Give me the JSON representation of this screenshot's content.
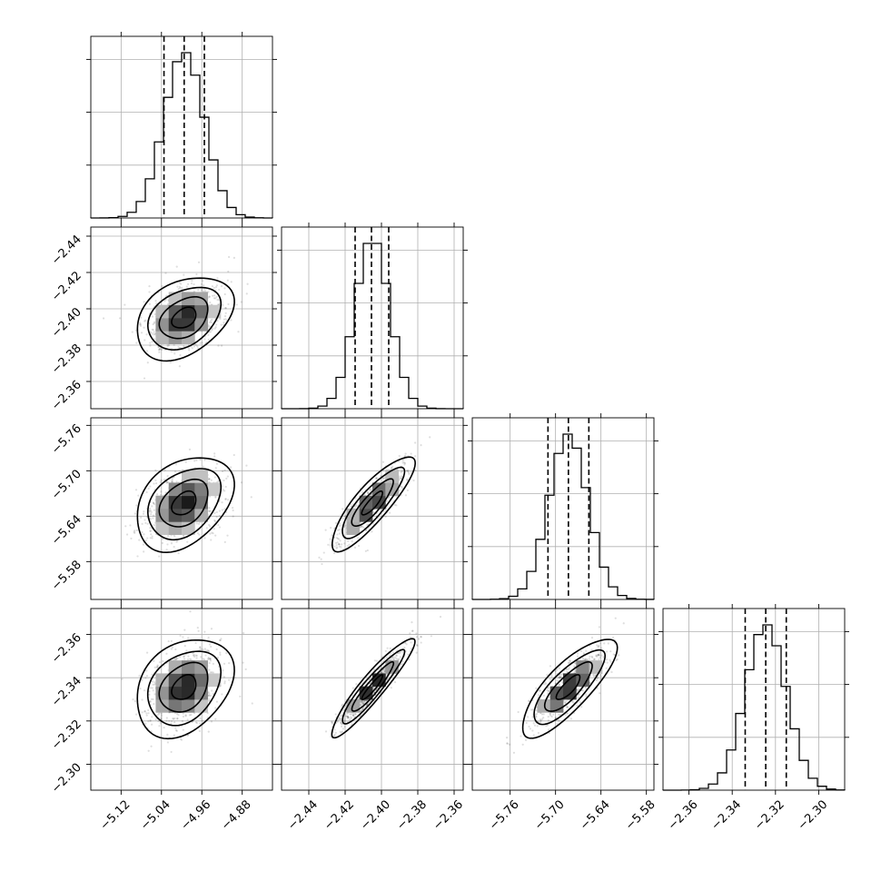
{
  "chart_data": {
    "type": "corner",
    "parameters": [
      {
        "mean": -4.995,
        "sd": 0.04,
        "range": [
          -5.18,
          -4.82
        ],
        "ticks": [
          "−5.12",
          "−5.04",
          "−4.96",
          "−4.88"
        ],
        "tick_values": [
          -5.12,
          -5.04,
          -4.96,
          -4.88
        ],
        "quantiles": [
          -5.035,
          -4.995,
          -4.955
        ]
      },
      {
        "mean": -2.405,
        "sd": 0.0095,
        "range": [
          -2.455,
          -2.355
        ],
        "ticks": [
          "−2.44",
          "−2.42",
          "−2.40",
          "−2.38",
          "−2.36"
        ],
        "tick_values": [
          -2.44,
          -2.42,
          -2.4,
          -2.38,
          -2.36
        ],
        "quantiles": [
          -2.4145,
          -2.4055,
          -2.396
        ]
      },
      {
        "mean": -5.683,
        "sd": 0.026,
        "range": [
          -5.81,
          -5.57
        ],
        "ticks": [
          "−5.76",
          "−5.70",
          "−5.64",
          "−5.58"
        ],
        "tick_values": [
          -5.76,
          -5.7,
          -5.64,
          -5.58
        ],
        "quantiles": [
          -5.71,
          -5.683,
          -5.656
        ]
      },
      {
        "mean": -2.3245,
        "sd": 0.0095,
        "range": [
          -2.372,
          -2.288
        ],
        "ticks": [
          "−2.36",
          "−2.34",
          "−2.32",
          "−2.30"
        ],
        "tick_values": [
          -2.36,
          -2.34,
          -2.32,
          -2.3
        ],
        "quantiles": [
          -2.334,
          -2.3245,
          -2.315
        ]
      }
    ],
    "row_ticks": {
      "1": [
        "−2.36",
        "−2.38",
        "−2.40",
        "−2.42",
        "−2.44"
      ],
      "2": [
        "−5.58",
        "−5.64",
        "−5.70",
        "−5.76"
      ],
      "3": [
        "−2.30",
        "−2.32",
        "−2.34",
        "−2.36"
      ]
    },
    "correlations": {
      "1-0": 0.35,
      "2-0": 0.35,
      "2-1": 0.85,
      "3-0": 0.3,
      "3-1": 0.93,
      "3-2": 0.8
    },
    "quantile_levels": [
      0.16,
      0.5,
      0.84
    ],
    "contour_levels_sigma": [
      0.5,
      1.0,
      1.5,
      2.0
    ],
    "histogram_bins": 20,
    "grid": true,
    "legend": "none",
    "colors": {
      "ink": "#000000",
      "grid": "#b0b0b0",
      "background": "#ffffff"
    }
  }
}
